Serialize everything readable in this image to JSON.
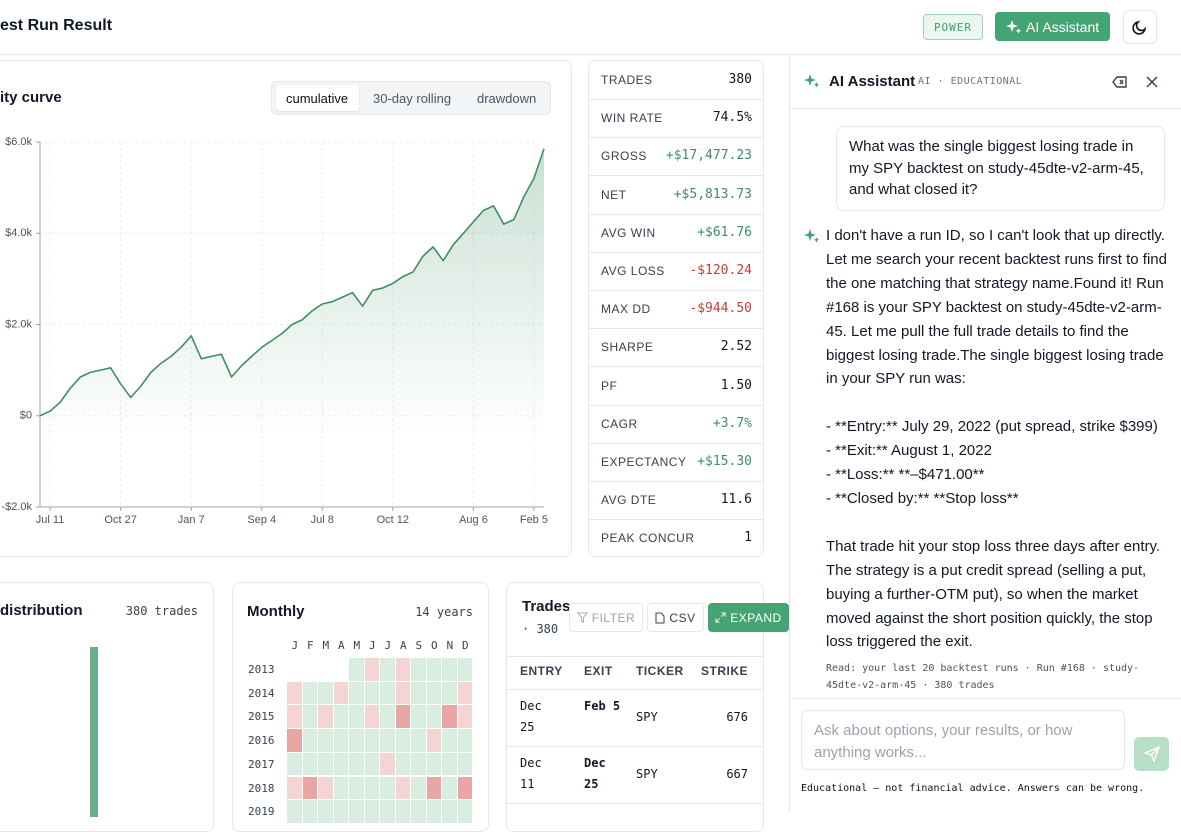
{
  "header": {
    "title": "est Run Result",
    "badge": "POWER",
    "assistant_button": "AI Assistant"
  },
  "equity": {
    "title": "ity curve",
    "tabs": [
      "cumulative",
      "30-day rolling",
      "drawdown"
    ],
    "chart_data": {
      "type": "line",
      "color": "#3f8f63",
      "values": [
        0,
        100,
        300,
        600,
        850,
        950,
        1000,
        1050,
        700,
        400,
        650,
        950,
        1150,
        1300,
        1500,
        1750,
        1250,
        1300,
        1350,
        850,
        1100,
        1300,
        1500,
        1650,
        1800,
        2000,
        2100,
        2300,
        2450,
        2500,
        2600,
        2700,
        2400,
        2750,
        2800,
        2900,
        3050,
        3150,
        3500,
        3700,
        3400,
        3750,
        4000,
        4250,
        4500,
        4600,
        4200,
        4300,
        4800,
        5200,
        5850
      ],
      "xlim": [
        0,
        50
      ],
      "xticks": [
        {
          "value": 1,
          "label": "Jul 11"
        },
        {
          "value": 8,
          "label": "Oct 27"
        },
        {
          "value": 15,
          "label": "Jan 7"
        },
        {
          "value": 22,
          "label": "Sep 4"
        },
        {
          "value": 28,
          "label": "Jul 8"
        },
        {
          "value": 35,
          "label": "Oct 12"
        },
        {
          "value": 43,
          "label": "Aug 6"
        },
        {
          "value": 49,
          "label": "Feb 5"
        }
      ],
      "ylim": [
        -2000,
        6000
      ],
      "yticks": [
        {
          "value": -2000,
          "label": "-$2.0k"
        },
        {
          "value": 0,
          "label": "$0"
        },
        {
          "value": 2000,
          "label": "$2.0k"
        },
        {
          "value": 4000,
          "label": "$4.0k"
        },
        {
          "value": 6000,
          "label": "$6.0k"
        }
      ],
      "grid": true
    }
  },
  "stats": [
    [
      "TRADES",
      "380"
    ],
    [
      "WIN RATE",
      "74.5%"
    ],
    [
      "GROSS",
      "+$17,477.23"
    ],
    [
      "NET",
      "+$5,813.73"
    ],
    [
      "AVG WIN",
      "+$61.76"
    ],
    [
      "AVG LOSS",
      "-$120.24"
    ],
    [
      "MAX DD",
      "-$944.50"
    ],
    [
      "SHARPE",
      "2.52"
    ],
    [
      "PF",
      "1.50"
    ],
    [
      "CAGR",
      "+3.7%"
    ],
    [
      "EXPECTANCY",
      "+$15.30"
    ],
    [
      "AVG DTE",
      "11.6"
    ],
    [
      "PEAK CONCUR",
      "1"
    ]
  ],
  "distribution": {
    "title": "distribution",
    "count": "380 trades"
  },
  "monthly": {
    "title": "Monthly",
    "span": "14 years",
    "months": [
      "J",
      "F",
      "M",
      "A",
      "M",
      "J",
      "J",
      "A",
      "S",
      "O",
      "N",
      "D"
    ],
    "years": [
      "2013",
      "2014",
      "2015",
      "2016",
      "2017",
      "2018",
      "2019"
    ],
    "colors": [
      [
        null,
        null,
        null,
        null,
        "#d9ede0",
        "#f5d4d4",
        "#d9ede0",
        "#f5d4d4",
        "#d9ede0",
        "#d9ede0",
        "#d9ede0",
        "#d9ede0"
      ],
      [
        "#f5d4d4",
        "#d9ede0",
        "#d9ede0",
        "#f5d4d4",
        "#d9ede0",
        "#d9ede0",
        "#d9ede0",
        "#f5d4d4",
        "#d9ede0",
        "#d9ede0",
        "#d9ede0",
        "#f5d4d4"
      ],
      [
        "#f5d4d4",
        "#d9ede0",
        "#f5d4d4",
        "#d9ede0",
        "#d9ede0",
        "#f5d4d4",
        "#d9ede0",
        "#e9a4a4",
        "#d9ede0",
        "#d9ede0",
        "#e9a4a4",
        "#f5d4d4"
      ],
      [
        "#e9a4a4",
        "#d9ede0",
        "#d9ede0",
        "#d9ede0",
        "#d9ede0",
        "#d9ede0",
        "#d9ede0",
        "#d9ede0",
        "#d9ede0",
        "#f5d4d4",
        "#d9ede0",
        "#d9ede0"
      ],
      [
        "#d9ede0",
        "#d9ede0",
        "#d9ede0",
        "#d9ede0",
        "#d9ede0",
        "#d9ede0",
        "#f5d4d4",
        "#d9ede0",
        "#d9ede0",
        "#d9ede0",
        "#d9ede0",
        "#d9ede0"
      ],
      [
        "#f5d4d4",
        "#e9a4a4",
        "#f5d4d4",
        "#d9ede0",
        "#d9ede0",
        "#d9ede0",
        "#d9ede0",
        "#f5d4d4",
        "#d9ede0",
        "#e9a4a4",
        "#d9ede0",
        "#e9a4a4"
      ],
      [
        "#d9ede0",
        "#d9ede0",
        "#d9ede0",
        "#d9ede0",
        "#d9ede0",
        "#d9ede0",
        "#d9ede0",
        "#d9ede0",
        "#d9ede0",
        "#d9ede0",
        "#d9ede0",
        "#d9ede0"
      ]
    ]
  },
  "trades": {
    "title": "Trades",
    "count": "· 380",
    "buttons": [
      "FILTER",
      "CSV",
      "EXPAND"
    ],
    "columns": [
      "ENTRY",
      "EXIT",
      "TICKER",
      "STRIKE"
    ],
    "rows": [
      [
        "Dec 25",
        "Feb 5",
        "SPY",
        "676"
      ],
      [
        "Dec 11",
        "Dec 25",
        "SPY",
        "667"
      ]
    ]
  },
  "assistant": {
    "title": "AI Assistant",
    "tag": "AI · EDUCATIONAL",
    "user_message": "What was the single biggest losing trade in my SPY backtest on study-45dte-v2-arm-45, and what closed it?",
    "reply": "I don't have a run ID, so I can't look that up directly. Let me search your recent backtest runs first to find the one matching that strategy name.Found it! Run #168 is your SPY backtest on study-45dte-v2-arm-45. Let me pull the full trade details to find the biggest losing trade.The single biggest losing trade in your SPY run was:\n\n- **Entry:** July 29, 2022 (put spread, strike $399)\n- **Exit:** August 1, 2022\n- **Loss:** **–$471.00**\n- **Closed by:** **Stop loss**\n\nThat trade hit your stop loss three days after entry. The strategy is a put credit spread (selling a put, buying a further-OTM put), so when the market moved against the short position quickly, the stop loss triggered the exit.",
    "sources": "Read: your last 20 backtest runs · Run #168 · study-45dte-v2-arm-45 · 380 trades",
    "placeholder": "Ask about options, your results, or how anything works...",
    "disclaimer": "Educational — not financial advice. Answers can be wrong."
  }
}
